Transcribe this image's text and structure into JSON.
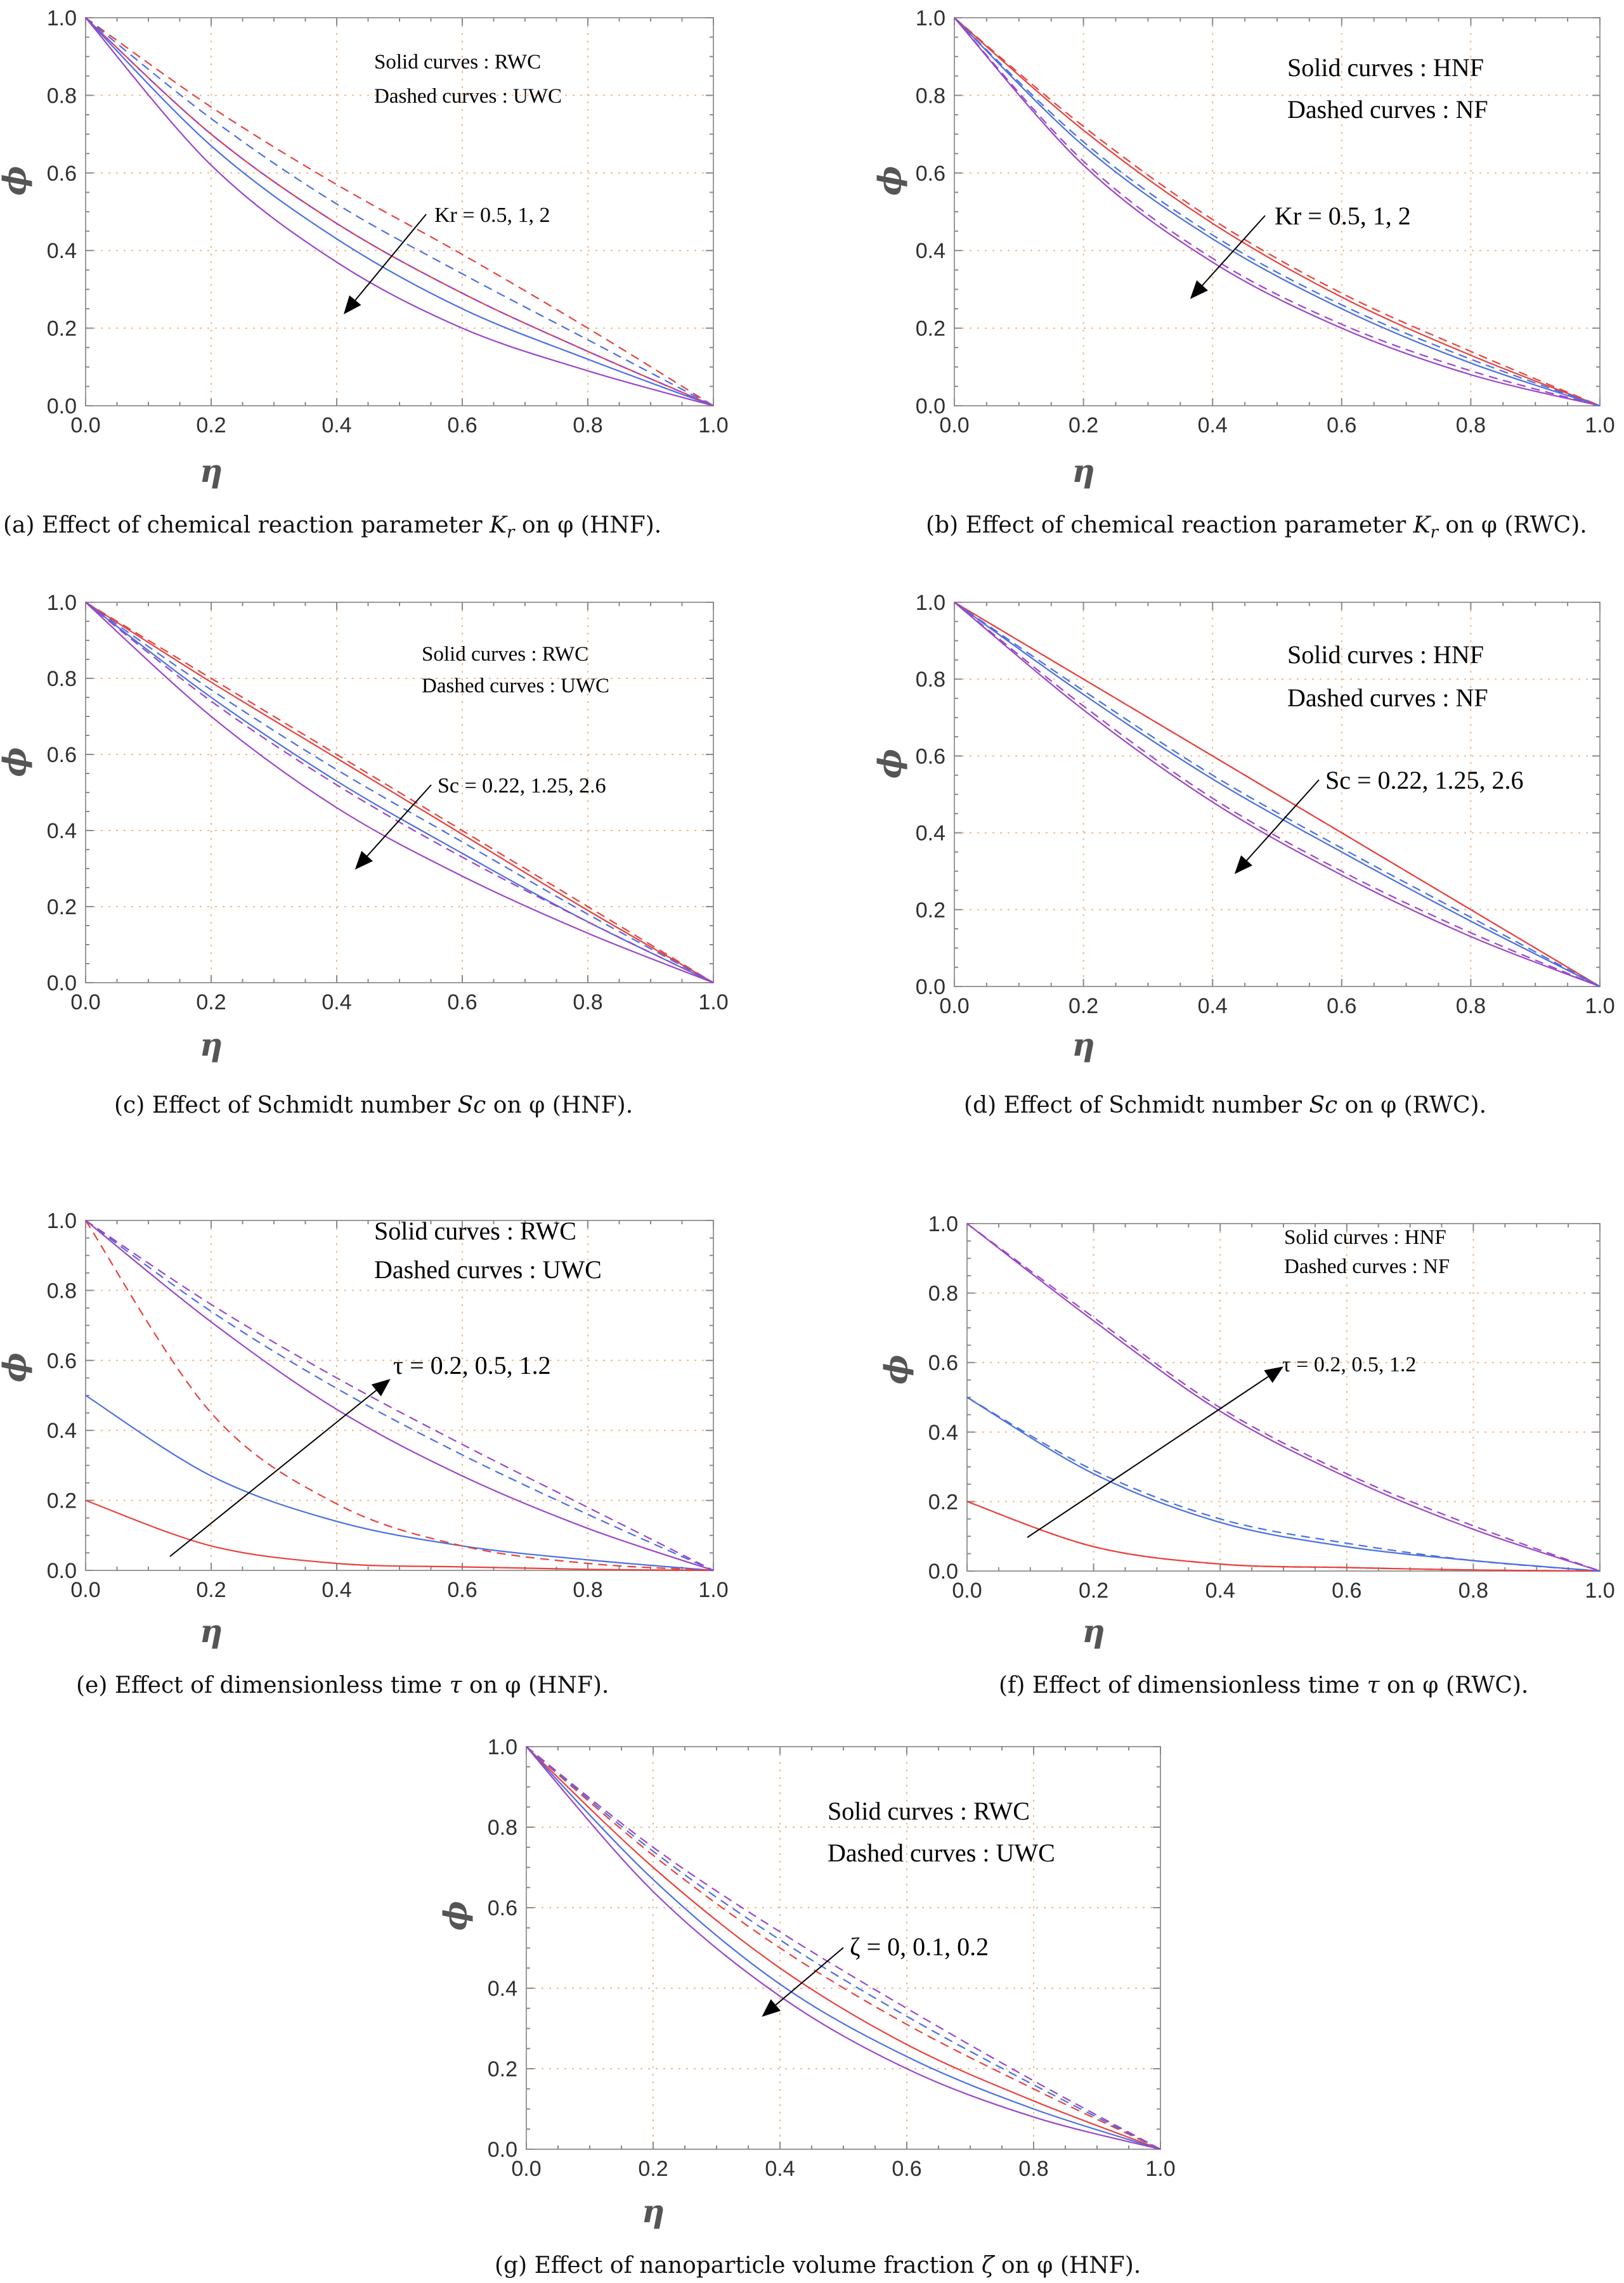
{
  "figure": {
    "panels": [
      {
        "id": "a",
        "caption": "(a) Effect of chemical reaction parameter K_r on φ (HNF).",
        "caption_parts": {
          "pre": "(a) Effect of chemical reaction parameter ",
          "sym": "K",
          "sub": "r",
          "post": " on φ (HNF)."
        },
        "legend": [
          "Solid curves : RWC",
          "Dashed curves : UWC"
        ],
        "annotation": "Kr = 0.5, 1, 2",
        "arrow_direction": "decreasing"
      },
      {
        "id": "b",
        "caption": "(b) Effect of chemical reaction parameter K_r on φ (RWC).",
        "caption_parts": {
          "pre": "(b) Effect of chemical reaction parameter ",
          "sym": "K",
          "sub": "r",
          "post": " on φ (RWC)."
        },
        "legend": [
          "Solid curves : HNF",
          "Dashed curves : NF"
        ],
        "annotation": "Kr = 0.5, 1, 2",
        "arrow_direction": "decreasing"
      },
      {
        "id": "c",
        "caption": "(c) Effect of Schmidt number Sc on φ (HNF).",
        "caption_parts": {
          "pre": "(c) Effect of Schmidt number ",
          "sym": "Sc",
          "sub": "",
          "post": " on φ (HNF)."
        },
        "legend": [
          "Solid curves : RWC",
          "Dashed curves : UWC"
        ],
        "annotation": "Sc = 0.22,  1.25,  2.6",
        "arrow_direction": "decreasing"
      },
      {
        "id": "d",
        "caption": "(d) Effect of Schmidt number Sc on φ (RWC).",
        "caption_parts": {
          "pre": "(d) Effect of Schmidt number ",
          "sym": "Sc",
          "sub": "",
          "post": " on φ (RWC)."
        },
        "legend": [
          "Solid curves : HNF",
          "Dashed curves : NF"
        ],
        "annotation": "Sc = 0.22,  1.25,  2.6",
        "arrow_direction": "decreasing"
      },
      {
        "id": "e",
        "caption": "(e) Effect of dimensionless time τ on φ (HNF).",
        "caption_parts": {
          "pre": "(e) Effect of dimensionless time ",
          "sym": "τ",
          "sub": "",
          "post": " on φ (HNF)."
        },
        "legend": [
          "Solid curves : RWC",
          "Dashed curves : UWC"
        ],
        "annotation": "τ = 0.2, 0.5, 1.2",
        "arrow_direction": "increasing"
      },
      {
        "id": "f",
        "caption": "(f) Effect of dimensionless time τ on φ (RWC).",
        "caption_parts": {
          "pre": "(f) Effect of dimensionless time ",
          "sym": "τ",
          "sub": "",
          "post": " on φ (RWC)."
        },
        "legend": [
          "Solid curves : HNF",
          "Dashed curves : NF"
        ],
        "annotation": "τ = 0.2, 0.5, 1.2",
        "arrow_direction": "increasing"
      },
      {
        "id": "g",
        "caption": "(g) Effect of nanoparticle volume fraction ζ on φ (HNF).",
        "caption_parts": {
          "pre": "(g) Effect of nanoparticle volume fraction ",
          "sym": "ζ",
          "sub": "",
          "post": " on φ (HNF)."
        },
        "legend": [
          "Solid curves : RWC",
          "Dashed curves : UWC"
        ],
        "annotation": "ζ = 0, 0.1, 0.2",
        "arrow_direction": "decreasing"
      }
    ]
  },
  "chart_data": [
    {
      "panel": "a",
      "type": "line",
      "xlabel": "η",
      "ylabel": "ϕ",
      "xlim": [
        0,
        1
      ],
      "ylim": [
        0,
        1
      ],
      "xticks": [
        "0.0",
        "0.2",
        "0.4",
        "0.6",
        "0.8",
        "1.0"
      ],
      "yticks": [
        "0.0",
        "0.2",
        "0.4",
        "0.6",
        "0.8",
        "1.0"
      ],
      "grid": true,
      "colors": {
        "red": "#e8423c",
        "blue": "#4a6fe3",
        "purple": "#9b45c9"
      },
      "x": [
        0,
        0.2,
        0.4,
        0.6,
        0.8,
        1
      ],
      "series": [
        {
          "name": "Kr=0.5 RWC",
          "color": "red",
          "style": "solid",
          "values": [
            1.0,
            0.7,
            0.47,
            0.29,
            0.14,
            0.0
          ]
        },
        {
          "name": "Kr=1 RWC",
          "color": "blue",
          "style": "solid",
          "values": [
            1.0,
            0.67,
            0.43,
            0.25,
            0.12,
            0.0
          ]
        },
        {
          "name": "Kr=2 RWC",
          "color": "purple",
          "style": "solid",
          "values": [
            1.0,
            0.62,
            0.37,
            0.2,
            0.09,
            0.0
          ]
        },
        {
          "name": "Kr=0.5 UWC",
          "color": "red",
          "style": "dashed",
          "values": [
            1.0,
            0.77,
            0.57,
            0.39,
            0.2,
            0.0
          ]
        },
        {
          "name": "Kr=1 UWC",
          "color": "blue",
          "style": "dashed",
          "values": [
            1.0,
            0.74,
            0.52,
            0.34,
            0.17,
            0.0
          ]
        },
        {
          "name": "Kr=2 UWC",
          "color": "purple",
          "style": "dashed",
          "values": [
            1.0,
            0.7,
            0.47,
            0.29,
            0.14,
            0.0
          ]
        }
      ]
    },
    {
      "panel": "b",
      "type": "line",
      "xlabel": "η",
      "ylabel": "ϕ",
      "xlim": [
        0,
        1
      ],
      "ylim": [
        0,
        1
      ],
      "xticks": [
        "0.0",
        "0.2",
        "0.4",
        "0.6",
        "0.8",
        "1.0"
      ],
      "yticks": [
        "0.0",
        "0.2",
        "0.4",
        "0.6",
        "0.8",
        "1.0"
      ],
      "grid": true,
      "colors": {
        "red": "#e8423c",
        "blue": "#4a6fe3",
        "purple": "#9b45c9"
      },
      "x": [
        0,
        0.2,
        0.4,
        0.6,
        0.8,
        1
      ],
      "series": [
        {
          "name": "Kr=0.5 HNF",
          "color": "red",
          "style": "solid",
          "values": [
            1.0,
            0.71,
            0.47,
            0.28,
            0.13,
            0.0
          ]
        },
        {
          "name": "Kr=1 HNF",
          "color": "blue",
          "style": "solid",
          "values": [
            1.0,
            0.67,
            0.43,
            0.25,
            0.11,
            0.0
          ]
        },
        {
          "name": "Kr=2 HNF",
          "color": "purple",
          "style": "solid",
          "values": [
            1.0,
            0.62,
            0.37,
            0.2,
            0.08,
            0.0
          ]
        },
        {
          "name": "Kr=0.5 NF",
          "color": "red",
          "style": "dashed",
          "values": [
            1.0,
            0.72,
            0.48,
            0.29,
            0.14,
            0.0
          ]
        },
        {
          "name": "Kr=1 NF",
          "color": "blue",
          "style": "dashed",
          "values": [
            1.0,
            0.68,
            0.44,
            0.26,
            0.12,
            0.0
          ]
        },
        {
          "name": "Kr=2 NF",
          "color": "purple",
          "style": "dashed",
          "values": [
            1.0,
            0.63,
            0.38,
            0.21,
            0.09,
            0.0
          ]
        }
      ]
    },
    {
      "panel": "c",
      "type": "line",
      "xlabel": "η",
      "ylabel": "ϕ",
      "xlim": [
        0,
        1
      ],
      "ylim": [
        0,
        1
      ],
      "xticks": [
        "0.0",
        "0.2",
        "0.4",
        "0.6",
        "0.8",
        "1.0"
      ],
      "yticks": [
        "0.0",
        "0.2",
        "0.4",
        "0.6",
        "0.8",
        "1.0"
      ],
      "grid": true,
      "colors": {
        "red": "#e8423c",
        "blue": "#4a6fe3",
        "purple": "#9b45c9"
      },
      "x": [
        0,
        0.2,
        0.4,
        0.6,
        0.8,
        1
      ],
      "series": [
        {
          "name": "Sc=0.22 RWC",
          "color": "red",
          "style": "solid",
          "values": [
            1.0,
            0.79,
            0.59,
            0.39,
            0.19,
            0.0
          ]
        },
        {
          "name": "Sc=1.25 RWC",
          "color": "blue",
          "style": "solid",
          "values": [
            1.0,
            0.75,
            0.53,
            0.34,
            0.16,
            0.0
          ]
        },
        {
          "name": "Sc=2.6 RWC",
          "color": "purple",
          "style": "solid",
          "values": [
            1.0,
            0.7,
            0.46,
            0.28,
            0.13,
            0.0
          ]
        },
        {
          "name": "Sc=0.22 UWC",
          "color": "red",
          "style": "dashed",
          "values": [
            1.0,
            0.8,
            0.6,
            0.4,
            0.2,
            0.0
          ]
        },
        {
          "name": "Sc=1.25 UWC",
          "color": "blue",
          "style": "dashed",
          "values": [
            1.0,
            0.77,
            0.56,
            0.37,
            0.18,
            0.0
          ]
        },
        {
          "name": "Sc=2.6 UWC",
          "color": "purple",
          "style": "dashed",
          "values": [
            1.0,
            0.74,
            0.52,
            0.33,
            0.16,
            0.0
          ]
        }
      ]
    },
    {
      "panel": "d",
      "type": "line",
      "xlabel": "η",
      "ylabel": "ϕ",
      "xlim": [
        0,
        1
      ],
      "ylim": [
        0,
        1
      ],
      "xticks": [
        "0.0",
        "0.2",
        "0.4",
        "0.6",
        "0.8",
        "1.0"
      ],
      "yticks": [
        "0.0",
        "0.2",
        "0.4",
        "0.6",
        "0.8",
        "1.0"
      ],
      "grid": true,
      "colors": {
        "red": "#e8423c",
        "blue": "#4a6fe3",
        "purple": "#9b45c9"
      },
      "x": [
        0,
        0.2,
        0.4,
        0.6,
        0.8,
        1
      ],
      "series": [
        {
          "name": "Sc=0.22 HNF",
          "color": "red",
          "style": "solid",
          "values": [
            1.0,
            0.8,
            0.6,
            0.4,
            0.2,
            0.0
          ]
        },
        {
          "name": "Sc=1.25 HNF",
          "color": "blue",
          "style": "solid",
          "values": [
            1.0,
            0.76,
            0.54,
            0.35,
            0.17,
            0.0
          ]
        },
        {
          "name": "Sc=2.6 HNF",
          "color": "purple",
          "style": "solid",
          "values": [
            1.0,
            0.72,
            0.48,
            0.29,
            0.13,
            0.0
          ]
        },
        {
          "name": "Sc=0.22 NF",
          "color": "red",
          "style": "dashed",
          "values": [
            1.0,
            0.8,
            0.6,
            0.4,
            0.2,
            0.0
          ]
        },
        {
          "name": "Sc=1.25 NF",
          "color": "blue",
          "style": "dashed",
          "values": [
            1.0,
            0.77,
            0.55,
            0.36,
            0.18,
            0.0
          ]
        },
        {
          "name": "Sc=2.6 NF",
          "color": "purple",
          "style": "dashed",
          "values": [
            1.0,
            0.73,
            0.49,
            0.3,
            0.14,
            0.0
          ]
        }
      ]
    },
    {
      "panel": "e",
      "type": "line",
      "xlabel": "η",
      "ylabel": "ϕ",
      "xlim": [
        0,
        1
      ],
      "ylim": [
        0,
        1
      ],
      "xticks": [
        "0.0",
        "0.2",
        "0.4",
        "0.6",
        "0.8",
        "1.0"
      ],
      "yticks": [
        "0.0",
        "0.2",
        "0.4",
        "0.6",
        "0.8",
        "1.0"
      ],
      "grid": true,
      "colors": {
        "red": "#e8423c",
        "blue": "#4a6fe3",
        "purple": "#9b45c9"
      },
      "x": [
        0,
        0.2,
        0.4,
        0.6,
        0.8,
        1
      ],
      "series": [
        {
          "name": "τ=0.2 RWC",
          "color": "red",
          "style": "solid",
          "values": [
            0.2,
            0.07,
            0.02,
            0.01,
            0.003,
            0.0
          ]
        },
        {
          "name": "τ=0.5 RWC",
          "color": "blue",
          "style": "solid",
          "values": [
            0.5,
            0.27,
            0.14,
            0.07,
            0.03,
            0.0
          ]
        },
        {
          "name": "τ=1.2 RWC",
          "color": "purple",
          "style": "solid",
          "values": [
            1.0,
            0.71,
            0.46,
            0.27,
            0.12,
            0.0
          ]
        },
        {
          "name": "τ=0.2 UWC",
          "color": "red",
          "style": "dashed",
          "values": [
            1.0,
            0.45,
            0.19,
            0.07,
            0.02,
            0.0
          ]
        },
        {
          "name": "τ=0.5 UWC",
          "color": "blue",
          "style": "dashed",
          "values": [
            1.0,
            0.74,
            0.52,
            0.33,
            0.16,
            0.0
          ]
        },
        {
          "name": "τ=1.2 UWC",
          "color": "purple",
          "style": "dashed",
          "values": [
            1.0,
            0.76,
            0.55,
            0.36,
            0.18,
            0.0
          ]
        }
      ]
    },
    {
      "panel": "f",
      "type": "line",
      "xlabel": "η",
      "ylabel": "ϕ",
      "xlim": [
        0,
        1
      ],
      "ylim": [
        0,
        1
      ],
      "xticks": [
        "0.0",
        "0.2",
        "0.4",
        "0.6",
        "0.8",
        "1.0"
      ],
      "yticks": [
        "0.0",
        "0.2",
        "0.4",
        "0.6",
        "0.8",
        "1.0"
      ],
      "grid": true,
      "colors": {
        "red": "#e8423c",
        "blue": "#4a6fe3",
        "purple": "#9b45c9"
      },
      "x": [
        0,
        0.2,
        0.4,
        0.6,
        0.8,
        1
      ],
      "series": [
        {
          "name": "τ=0.2 HNF",
          "color": "red",
          "style": "solid",
          "values": [
            0.2,
            0.07,
            0.02,
            0.01,
            0.003,
            0.0
          ]
        },
        {
          "name": "τ=0.5 HNF",
          "color": "blue",
          "style": "solid",
          "values": [
            0.5,
            0.28,
            0.14,
            0.07,
            0.03,
            0.0
          ]
        },
        {
          "name": "τ=1.2 HNF",
          "color": "purple",
          "style": "solid",
          "values": [
            1.0,
            0.72,
            0.46,
            0.27,
            0.12,
            0.0
          ]
        },
        {
          "name": "τ=0.2 NF",
          "color": "red",
          "style": "dashed",
          "values": [
            0.2,
            0.07,
            0.02,
            0.01,
            0.003,
            0.0
          ]
        },
        {
          "name": "τ=0.5 NF",
          "color": "blue",
          "style": "dashed",
          "values": [
            0.5,
            0.29,
            0.15,
            0.08,
            0.03,
            0.0
          ]
        },
        {
          "name": "τ=1.2 NF",
          "color": "purple",
          "style": "dashed",
          "values": [
            1.0,
            0.73,
            0.47,
            0.28,
            0.13,
            0.0
          ]
        }
      ]
    },
    {
      "panel": "g",
      "type": "line",
      "xlabel": "η",
      "ylabel": "ϕ",
      "xlim": [
        0,
        1
      ],
      "ylim": [
        0,
        1
      ],
      "xticks": [
        "0.0",
        "0.2",
        "0.4",
        "0.6",
        "0.8",
        "1.0"
      ],
      "yticks": [
        "0.0",
        "0.2",
        "0.4",
        "0.6",
        "0.8",
        "1.0"
      ],
      "grid": true,
      "colors": {
        "red": "#e8423c",
        "blue": "#4a6fe3",
        "purple": "#9b45c9"
      },
      "x": [
        0,
        0.2,
        0.4,
        0.6,
        0.8,
        1
      ],
      "series": [
        {
          "name": "ζ=0 RWC",
          "color": "red",
          "style": "solid",
          "values": [
            1.0,
            0.7,
            0.45,
            0.26,
            0.12,
            0.0
          ]
        },
        {
          "name": "ζ=0.1 RWC",
          "color": "blue",
          "style": "solid",
          "values": [
            1.0,
            0.67,
            0.41,
            0.23,
            0.1,
            0.0
          ]
        },
        {
          "name": "ζ=0.2 RWC",
          "color": "purple",
          "style": "solid",
          "values": [
            1.0,
            0.64,
            0.38,
            0.2,
            0.08,
            0.0
          ]
        },
        {
          "name": "ζ=0 UWC",
          "color": "red",
          "style": "dashed",
          "values": [
            1.0,
            0.73,
            0.5,
            0.31,
            0.15,
            0.0
          ]
        },
        {
          "name": "ζ=0.1 UWC",
          "color": "blue",
          "style": "dashed",
          "values": [
            1.0,
            0.74,
            0.52,
            0.33,
            0.16,
            0.0
          ]
        },
        {
          "name": "ζ=0.2 UWC",
          "color": "purple",
          "style": "dashed",
          "values": [
            1.0,
            0.75,
            0.54,
            0.35,
            0.17,
            0.0
          ]
        }
      ]
    }
  ]
}
